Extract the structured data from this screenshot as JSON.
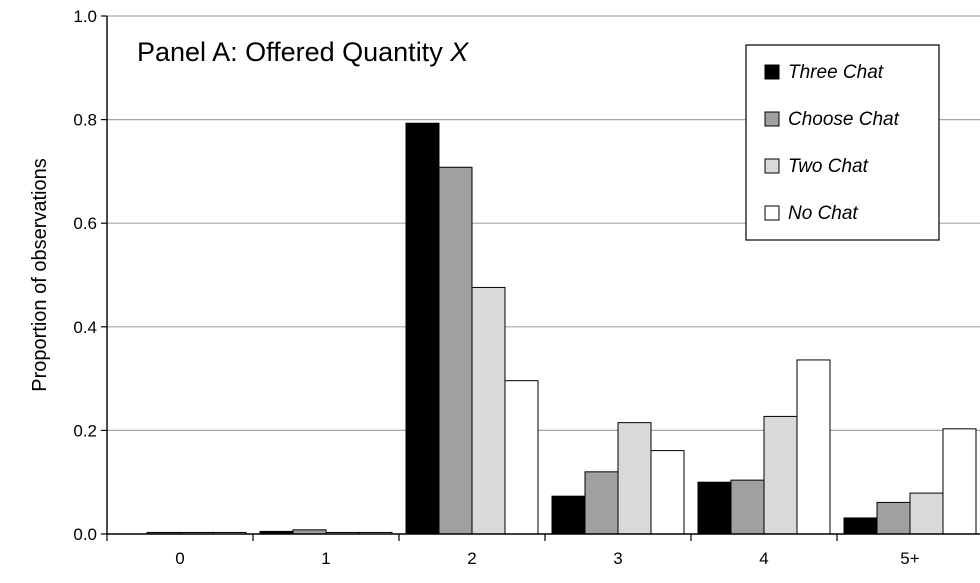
{
  "chart_data": {
    "type": "bar",
    "title": "Panel A: Offered Quantity ",
    "title_var": "X",
    "xlabel": "",
    "ylabel": "Proportion of observations",
    "ylim": [
      0,
      1.0
    ],
    "yticks": [
      "0.0",
      "0.2",
      "0.4",
      "0.6",
      "0.8",
      "1.0"
    ],
    "categories": [
      "0",
      "1",
      "2",
      "3",
      "4",
      "5+"
    ],
    "grid": true,
    "legend_position": "top-right",
    "series": [
      {
        "name": "Three Chat",
        "color": "#000000",
        "values": [
          0.0,
          0.005,
          0.793,
          0.073,
          0.1,
          0.031
        ]
      },
      {
        "name": "Choose Chat",
        "color": "#a0a0a0",
        "values": [
          0.003,
          0.008,
          0.708,
          0.12,
          0.104,
          0.061
        ]
      },
      {
        "name": "Two Chat",
        "color": "#d9d9d9",
        "values": [
          0.003,
          0.003,
          0.476,
          0.215,
          0.227,
          0.079
        ]
      },
      {
        "name": "No Chat",
        "color": "#ffffff",
        "values": [
          0.003,
          0.003,
          0.296,
          0.161,
          0.336,
          0.203
        ]
      }
    ]
  }
}
